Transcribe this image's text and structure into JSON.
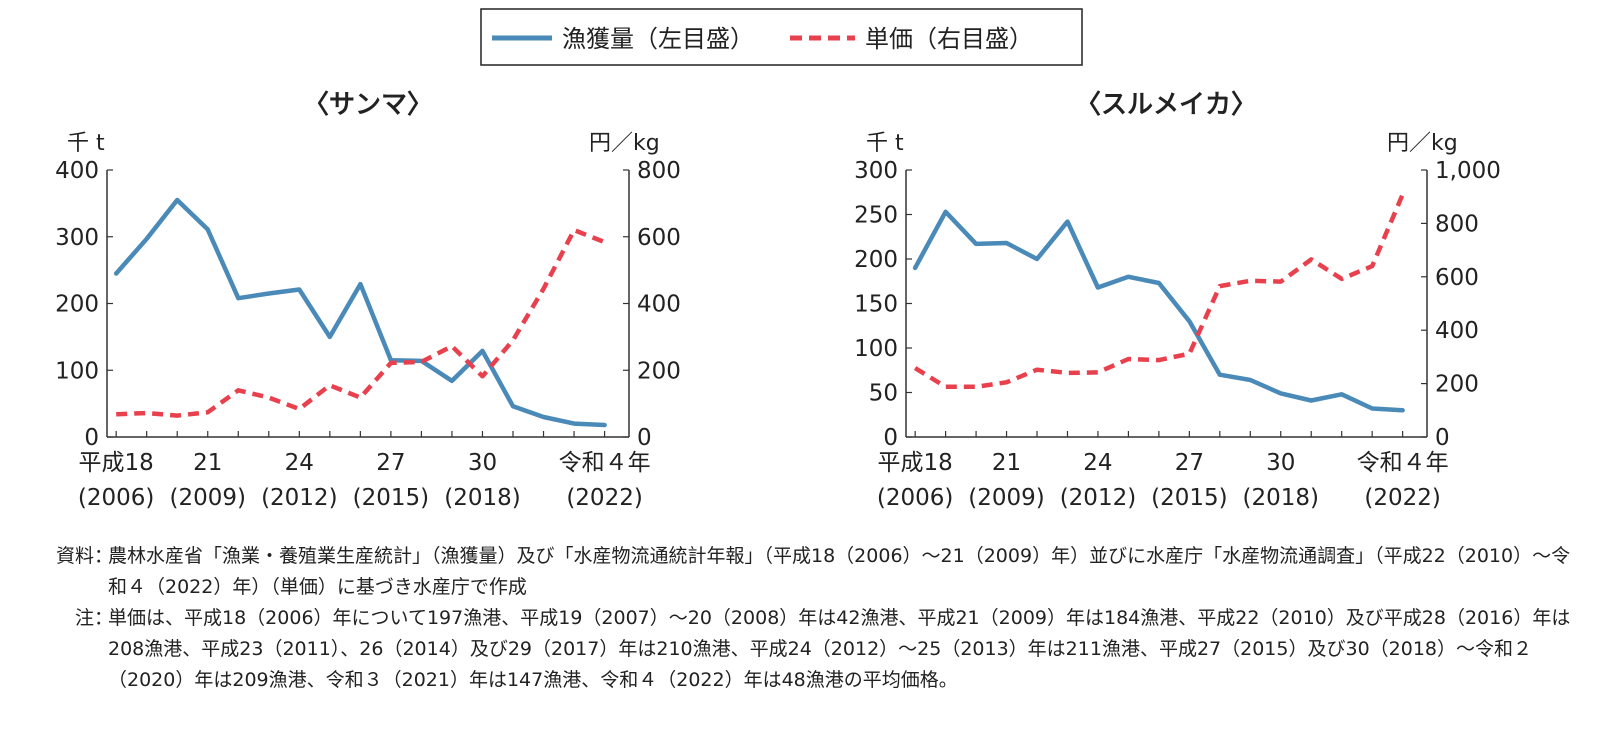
{
  "legend": {
    "catch_label": "漁獲量（左目盛）",
    "price_label": "単価（右目盛）",
    "catch_color": "#4a8ab8",
    "price_color": "#e8414d"
  },
  "chart_data": [
    {
      "type": "line",
      "title": "〈サンマ〉",
      "ylabel_left": "千 t",
      "ylabel_right": "円／kg",
      "ylim_left": [
        0,
        400
      ],
      "ylim_right": [
        0,
        800
      ],
      "yticks_left": [
        "0",
        "100",
        "200",
        "300",
        "400"
      ],
      "yticks_right": [
        "0",
        "200",
        "400",
        "600",
        "800"
      ],
      "x": [
        2006,
        2007,
        2008,
        2009,
        2010,
        2011,
        2012,
        2013,
        2014,
        2015,
        2016,
        2017,
        2018,
        2019,
        2020,
        2021,
        2022
      ],
      "xticks": [
        {
          "label": "平成18",
          "sub": "(2006)"
        },
        {
          "label": "21",
          "sub": "(2009)"
        },
        {
          "label": "24",
          "sub": "(2012)"
        },
        {
          "label": "27",
          "sub": "(2015)"
        },
        {
          "label": "30",
          "sub": "(2018)"
        },
        {
          "label": "令和４年",
          "sub": "(2022)"
        }
      ],
      "series": [
        {
          "name": "漁獲量（左目盛）",
          "axis": "left",
          "values": [
            245,
            297,
            355,
            311,
            208,
            215,
            221,
            150,
            229,
            115,
            114,
            84,
            129,
            46,
            30,
            20,
            18
          ]
        },
        {
          "name": "単価（右目盛）",
          "axis": "right",
          "values": [
            68,
            72,
            64,
            74,
            140,
            118,
            84,
            155,
            118,
            222,
            225,
            272,
            182,
            290,
            444,
            620,
            584
          ]
        }
      ]
    },
    {
      "type": "line",
      "title": "〈スルメイカ〉",
      "ylabel_left": "千 t",
      "ylabel_right": "円／kg",
      "ylim_left": [
        0,
        300
      ],
      "ylim_right": [
        0,
        1000
      ],
      "yticks_left": [
        "0",
        "50",
        "100",
        "150",
        "200",
        "250",
        "300"
      ],
      "yticks_right": [
        "0",
        "200",
        "400",
        "600",
        "800",
        "1,000"
      ],
      "x": [
        2006,
        2007,
        2008,
        2009,
        2010,
        2011,
        2012,
        2013,
        2014,
        2015,
        2016,
        2017,
        2018,
        2019,
        2020,
        2021,
        2022
      ],
      "xticks": [
        {
          "label": "平成18",
          "sub": "(2006)"
        },
        {
          "label": "21",
          "sub": "(2009)"
        },
        {
          "label": "24",
          "sub": "(2012)"
        },
        {
          "label": "27",
          "sub": "(2015)"
        },
        {
          "label": "30",
          "sub": "(2018)"
        },
        {
          "label": "令和４年",
          "sub": "(2022)"
        }
      ],
      "series": [
        {
          "name": "漁獲量（左目盛）",
          "axis": "left",
          "values": [
            190,
            253,
            217,
            218,
            200,
            242,
            168,
            180,
            173,
            130,
            70,
            64,
            49,
            41,
            48,
            32,
            30
          ]
        },
        {
          "name": "単価（右目盛）",
          "axis": "right",
          "values": [
            258,
            188,
            188,
            205,
            252,
            240,
            242,
            292,
            288,
            312,
            565,
            585,
            582,
            665,
            592,
            640,
            908
          ]
        }
      ]
    }
  ],
  "notes": {
    "source_label": "資料",
    "source_text": "農林水産省「漁業・養殖業生産統計」（漁獲量）及び「水産物流通統計年報」（平成18（2006）〜21（2009）年）並びに水産庁「水産物流通調査」（平成22（2010）〜令和４（2022）年）（単価）に基づき水産庁で作成",
    "note_label": "注",
    "note_text": "単価は、平成18（2006）年について197漁港、平成19（2007）〜20（2008）年は42漁港、平成21（2009）年は184漁港、平成22（2010）及び平成28（2016）年は208漁港、平成23（2011）、26（2014）及び29（2017）年は210漁港、平成24（2012）〜25（2013）年は211漁港、平成27（2015）及び30（2018）〜令和２（2020）年は209漁港、令和３（2021）年は147漁港、令和４（2022）年は48漁港の平均価格。"
  }
}
